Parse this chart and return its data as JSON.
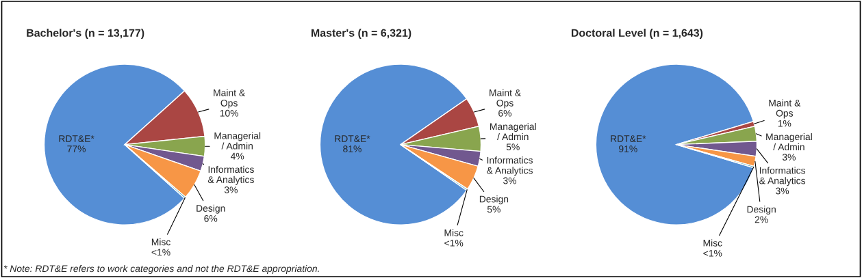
{
  "chart_data": [
    {
      "type": "pie",
      "title": "Bachelor's (n = 13,177)",
      "categories": [
        "RDT&E*",
        "Maint &\nOps",
        "Managerial\n/ Admin",
        "Informatics\n& Analytics",
        "Design",
        "Misc"
      ],
      "values": [
        76.7,
        10,
        4,
        3,
        6,
        0.3
      ],
      "value_labels": [
        "77%",
        "10%",
        "4%",
        "3%",
        "6%",
        "<1%"
      ],
      "colors": [
        "#558ed5",
        "#aa4643",
        "#89a54e",
        "#71588f",
        "#f79646",
        "#4198af"
      ]
    },
    {
      "type": "pie",
      "title": "Master's (n = 6,321)",
      "categories": [
        "RDT&E*",
        "Maint &\nOps",
        "Managerial\n/ Admin",
        "Informatics\n& Analytics",
        "Design",
        "Misc"
      ],
      "values": [
        80.7,
        6,
        5,
        3,
        5,
        0.3
      ],
      "value_labels": [
        "81%",
        "6%",
        "5%",
        "3%",
        "5%",
        "<1%"
      ],
      "colors": [
        "#558ed5",
        "#aa4643",
        "#89a54e",
        "#71588f",
        "#f79646",
        "#4198af"
      ]
    },
    {
      "type": "pie",
      "title": "Doctoral Level (n = 1,643)",
      "categories": [
        "RDT&E*",
        "Maint &\nOps",
        "Managerial\n/ Admin",
        "Informatics\n& Analytics",
        "Design",
        "Misc"
      ],
      "values": [
        90.7,
        1,
        3,
        3,
        2,
        0.3
      ],
      "value_labels": [
        "91%",
        "1%",
        "3%",
        "3%",
        "2%",
        "<1%"
      ],
      "colors": [
        "#558ed5",
        "#aa4643",
        "#89a54e",
        "#71588f",
        "#f79646",
        "#4198af"
      ],
      "annotations": [
        "* Note: RDT&E refers to work categories and not the RDT&E appropriation."
      ]
    }
  ]
}
